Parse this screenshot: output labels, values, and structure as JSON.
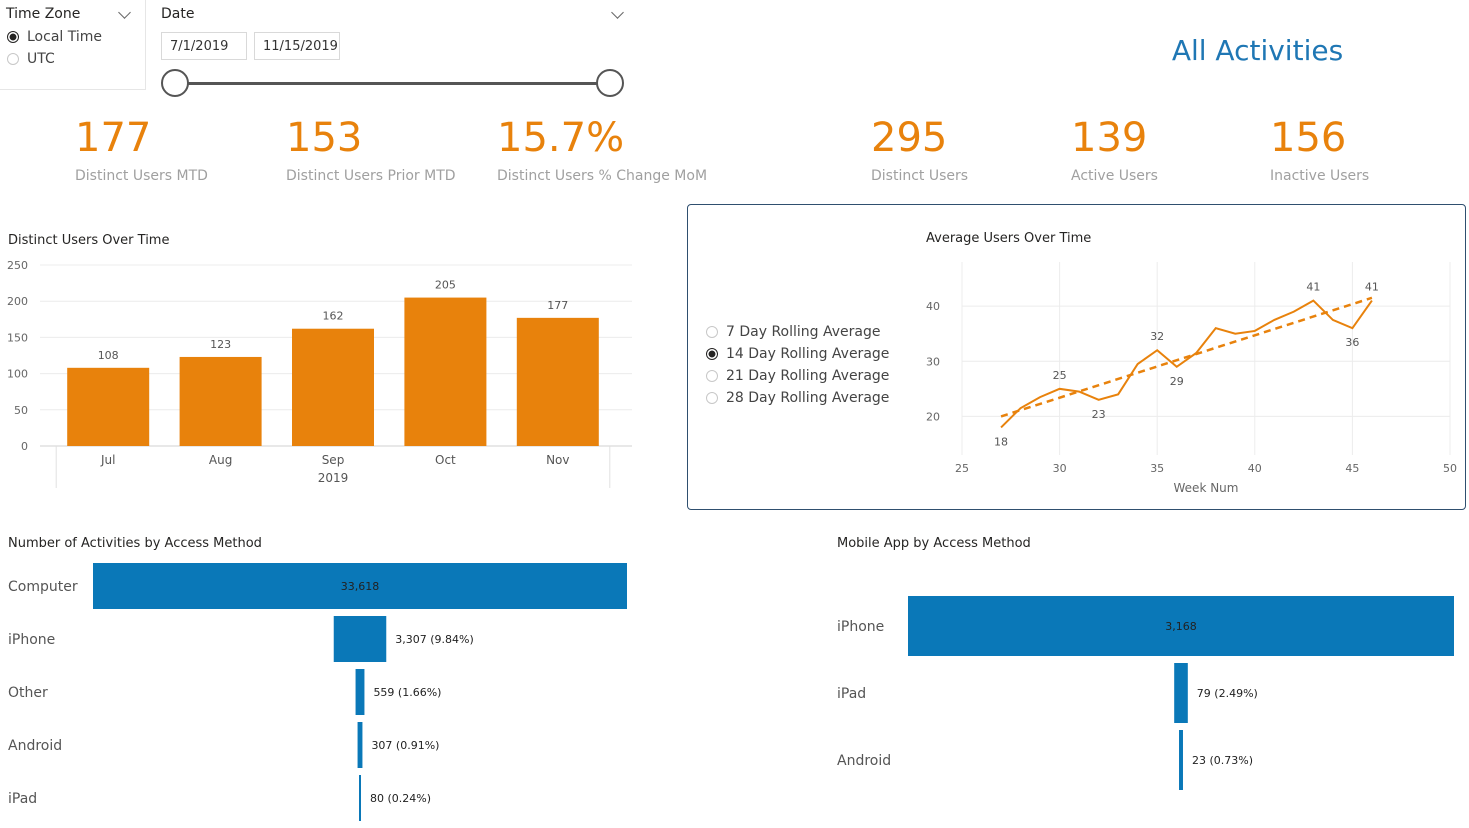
{
  "page_title": "All Activities",
  "timezone_slicer": {
    "title": "Time Zone",
    "options": [
      {
        "label": "Local Time",
        "selected": true
      },
      {
        "label": "UTC",
        "selected": false
      }
    ]
  },
  "date_slicer": {
    "title": "Date",
    "start": "7/1/2019",
    "end": "11/15/2019"
  },
  "kpis": [
    {
      "value": "177",
      "label": "Distinct Users MTD"
    },
    {
      "value": "153",
      "label": "Distinct Users Prior MTD"
    },
    {
      "value": "15.7%",
      "label": "Distinct Users % Change MoM"
    },
    {
      "value": "295",
      "label": "Distinct Users"
    },
    {
      "value": "139",
      "label": "Active Users"
    },
    {
      "value": "156",
      "label": "Inactive Users"
    }
  ],
  "rolling_slicer": {
    "options": [
      {
        "label": "7 Day Rolling Average",
        "selected": false
      },
      {
        "label": "14 Day Rolling Average",
        "selected": true
      },
      {
        "label": "21 Day Rolling Average",
        "selected": false
      },
      {
        "label": "28 Day Rolling Average",
        "selected": false
      }
    ]
  },
  "colors": {
    "orange": "#e8820c",
    "blue": "#0a78b8",
    "title_blue": "#1f77b4"
  },
  "chart_data": [
    {
      "type": "bar",
      "title": "Distinct Users Over Time",
      "categories": [
        "Jul",
        "Aug",
        "Sep",
        "Oct",
        "Nov"
      ],
      "x_group_label": "2019",
      "values": [
        108,
        123,
        162,
        205,
        177
      ],
      "yticks": [
        0,
        50,
        100,
        150,
        200,
        250
      ],
      "ylim": [
        0,
        250
      ],
      "grid": true,
      "color": "#e8820c"
    },
    {
      "type": "line",
      "title": "Average Users Over Time",
      "xlabel": "Week Num",
      "xlim": [
        25,
        50
      ],
      "ylim": [
        13,
        48
      ],
      "xticks": [
        25,
        30,
        35,
        40,
        45,
        50
      ],
      "yticks": [
        20,
        30,
        40
      ],
      "grid": true,
      "series": [
        {
          "x": [
            27,
            28,
            29,
            30,
            31,
            32,
            33,
            34,
            35,
            36,
            37,
            38,
            39,
            40,
            41,
            42,
            43,
            44,
            45,
            46
          ],
          "y": [
            18,
            21.5,
            23.5,
            25,
            24.5,
            23,
            24,
            29.5,
            32,
            29,
            31.5,
            36,
            35,
            35.5,
            37.5,
            39,
            41,
            37.5,
            36,
            41
          ],
          "color": "#e8820c"
        }
      ],
      "trendline": {
        "x": [
          27,
          46
        ],
        "y": [
          20,
          41.5
        ],
        "dashed": true,
        "color": "#e8820c"
      },
      "data_labels": [
        {
          "x": 27,
          "y": 18,
          "text": "18",
          "pos": "below"
        },
        {
          "x": 30,
          "y": 25,
          "text": "25",
          "pos": "above"
        },
        {
          "x": 32,
          "y": 23,
          "text": "23",
          "pos": "below"
        },
        {
          "x": 35,
          "y": 32,
          "text": "32",
          "pos": "above"
        },
        {
          "x": 36,
          "y": 29,
          "text": "29",
          "pos": "below"
        },
        {
          "x": 43,
          "y": 41,
          "text": "41",
          "pos": "above"
        },
        {
          "x": 45,
          "y": 36,
          "text": "36",
          "pos": "below"
        },
        {
          "x": 46,
          "y": 41,
          "text": "41",
          "pos": "above"
        }
      ]
    },
    {
      "type": "bar",
      "orientation": "funnel",
      "title": "Number of Activities by Access Method",
      "categories": [
        "Computer",
        "iPhone",
        "Other",
        "Android",
        "iPad"
      ],
      "values": [
        33618,
        3307,
        559,
        307,
        80
      ],
      "labels": [
        "33,618",
        "3,307 (9.84%)",
        "559 (1.66%)",
        "307 (0.91%)",
        "80 (0.24%)"
      ],
      "color": "#0a78b8"
    },
    {
      "type": "bar",
      "orientation": "funnel",
      "title": "Mobile App by Access Method",
      "categories": [
        "iPhone",
        "iPad",
        "Android"
      ],
      "values": [
        3168,
        79,
        23
      ],
      "labels": [
        "3,168",
        "79 (2.49%)",
        "23 (0.73%)"
      ],
      "color": "#0a78b8"
    }
  ]
}
